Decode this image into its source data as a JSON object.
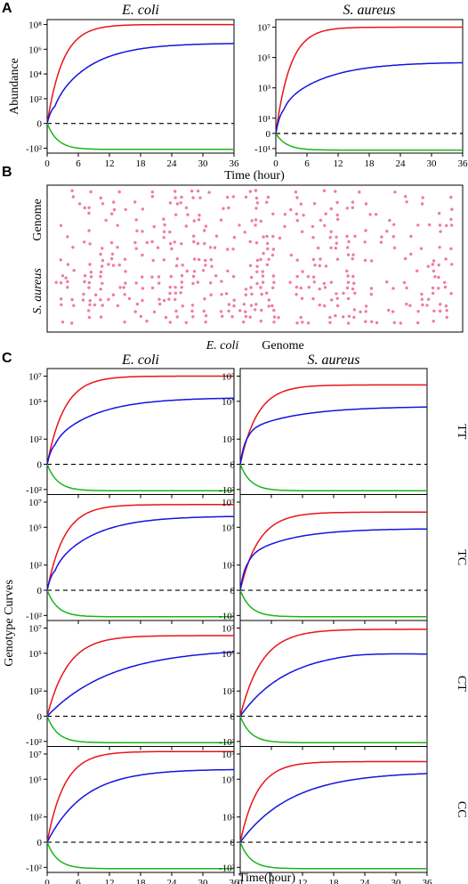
{
  "panel_letters": [
    "A",
    "B",
    "C"
  ],
  "chart_data": [
    {
      "panel": "A",
      "type": "line",
      "xlabel": "Time (hour)",
      "ylabel": "Abundance",
      "xticks": [
        "0",
        "6",
        "12",
        "18",
        "24",
        "30",
        "36"
      ],
      "xlim": [
        0,
        36
      ],
      "colors": {
        "red": "#e8141b",
        "blue": "#1414e0",
        "green": "#1ab51a",
        "zero": "#000000"
      },
      "subplots": [
        {
          "title": "E. coli",
          "ytick_labels": [
            "10⁸",
            "10⁶",
            "10⁴",
            "10²",
            "0",
            "-10²"
          ],
          "ytick_values": [
            8,
            6,
            4,
            2,
            0,
            -2
          ],
          "ylim": [
            -2.4,
            8.4
          ],
          "series": [
            {
              "color": "red",
              "plateau": 8.0,
              "rate": 0.33
            },
            {
              "color": "blue",
              "plateau": 6.5,
              "rate": 0.14,
              "bump": 1.8
            },
            {
              "color": "green",
              "plateau": -2.1,
              "rate": 0.45
            }
          ]
        },
        {
          "title": "S. aureus",
          "ytick_labels": [
            "10⁷",
            "10⁵",
            "10³",
            "10¹",
            "0",
            "-10¹"
          ],
          "ytick_values": [
            7,
            5,
            3,
            1,
            0,
            -1
          ],
          "ylim": [
            -1.3,
            7.5
          ],
          "series": [
            {
              "color": "red",
              "plateau": 7.0,
              "rate": 0.36
            },
            {
              "color": "blue",
              "plateau": 4.7,
              "rate": 0.12,
              "bump": 2.0
            },
            {
              "color": "green",
              "plateau": -1.1,
              "rate": 0.45
            }
          ]
        }
      ]
    },
    {
      "panel": "B",
      "type": "scatter",
      "xlabel_italic": "E. coli",
      "xlabel_plain": "Genome",
      "ylabel_italic": "S. aureus",
      "ylabel_plain": "Genome",
      "point_color": "#f07aa8"
    },
    {
      "panel": "C",
      "type": "line",
      "xlabel": "Time(hour)",
      "ylabel": "Genotype Curves",
      "xticks": [
        "0",
        "6",
        "12",
        "18",
        "24",
        "30",
        "36"
      ],
      "xlim": [
        0,
        36
      ],
      "columns": [
        "E. coli",
        "S. aureus"
      ],
      "rows": [
        "TT",
        "TC",
        "CT",
        "CC"
      ],
      "ytick_labels": [
        "10⁷",
        "10⁵",
        "10²",
        "0",
        "-10²"
      ],
      "ytick_values": [
        7,
        5,
        2,
        0,
        -2
      ],
      "ylim": [
        -2.4,
        7.6
      ],
      "cells": [
        {
          "row": "TT",
          "col": "E. coli",
          "red": 7.0,
          "red_rate": 0.3,
          "blue": 5.3,
          "blue_rate": 0.12,
          "bump": 2.0
        },
        {
          "row": "TT",
          "col": "S. aureus",
          "red": 6.3,
          "red_rate": 0.3,
          "blue": 4.6,
          "blue_rate": 0.1,
          "bump": 2.8
        },
        {
          "row": "TC",
          "col": "E. coli",
          "red": 6.8,
          "red_rate": 0.3,
          "blue": 5.9,
          "blue_rate": 0.13,
          "bump": 2.0
        },
        {
          "row": "TC",
          "col": "S. aureus",
          "red": 6.2,
          "red_rate": 0.28,
          "blue": 4.9,
          "blue_rate": 0.12,
          "bump": 2.8
        },
        {
          "row": "CT",
          "col": "E. coli",
          "red": 6.4,
          "red_rate": 0.25,
          "blue": 5.4,
          "blue_rate": 0.08,
          "bump": 0
        },
        {
          "row": "CT",
          "col": "S. aureus",
          "red": 6.9,
          "red_rate": 0.24,
          "blue": 5.3,
          "blue_rate": 0.11,
          "bump": 0,
          "blue_decline": true
        },
        {
          "row": "CC",
          "col": "E. coli",
          "red": 7.2,
          "red_rate": 0.3,
          "blue": 5.8,
          "blue_rate": 0.14,
          "bump": 0
        },
        {
          "row": "CC",
          "col": "S. aureus",
          "red": 6.4,
          "red_rate": 0.3,
          "blue": 5.6,
          "blue_rate": 0.1,
          "bump": 0
        }
      ]
    }
  ]
}
